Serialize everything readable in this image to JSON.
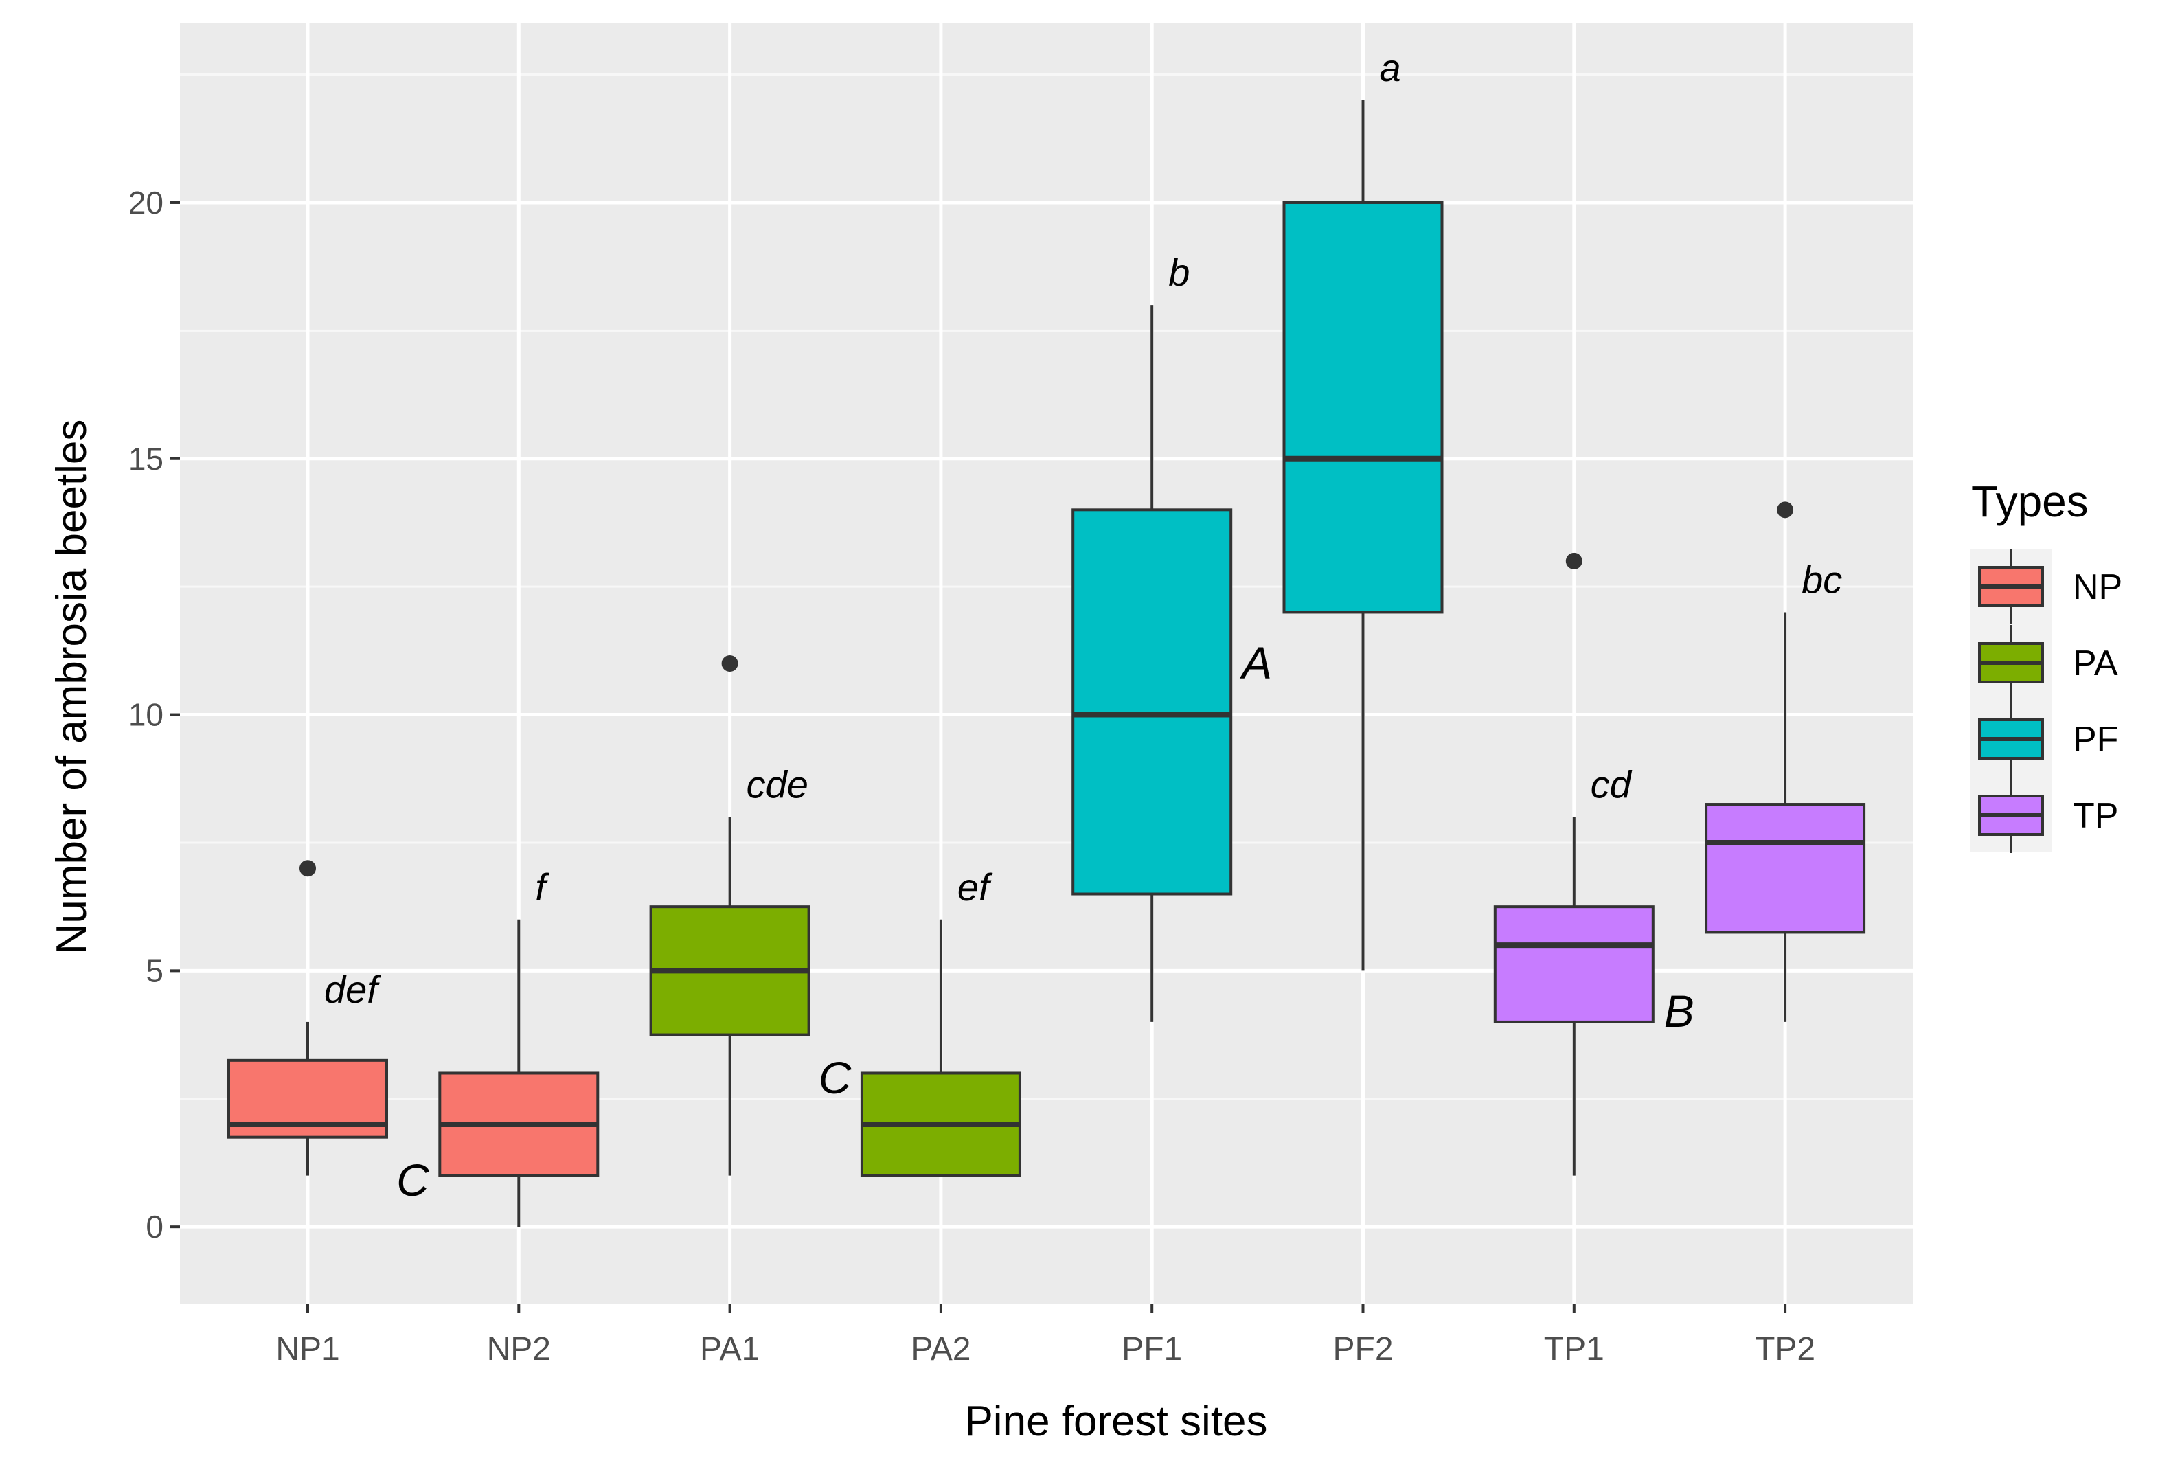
{
  "chart_data": {
    "type": "box",
    "xlabel": "Pine forest sites",
    "ylabel": "Number of ambrosia beetles",
    "ylim": [
      -1.5,
      23.5
    ],
    "yticks": [
      0,
      5,
      10,
      15,
      20
    ],
    "yminor": [
      2.5,
      7.5,
      12.5,
      17.5,
      22.5
    ],
    "categories": [
      "NP1",
      "NP2",
      "PA1",
      "PA2",
      "PF1",
      "PF2",
      "TP1",
      "TP2"
    ],
    "boxes": [
      {
        "site": "NP1",
        "type": "NP",
        "whisker_low": 1,
        "q1": 1.75,
        "median": 2,
        "q3": 3.25,
        "whisker_high": 4,
        "outliers": [
          7
        ],
        "letter": "def"
      },
      {
        "site": "NP2",
        "type": "NP",
        "whisker_low": 0,
        "q1": 1,
        "median": 2,
        "q3": 3,
        "whisker_high": 6,
        "outliers": [],
        "letter": "f"
      },
      {
        "site": "PA1",
        "type": "PA",
        "whisker_low": 1,
        "q1": 3.75,
        "median": 5,
        "q3": 6.25,
        "whisker_high": 8,
        "outliers": [
          11
        ],
        "letter": "cde"
      },
      {
        "site": "PA2",
        "type": "PA",
        "whisker_low": 1,
        "q1": 1,
        "median": 2,
        "q3": 3,
        "whisker_high": 6,
        "outliers": [],
        "letter": "ef"
      },
      {
        "site": "PF1",
        "type": "PF",
        "whisker_low": 4,
        "q1": 6.5,
        "median": 10,
        "q3": 14,
        "whisker_high": 18,
        "outliers": [],
        "letter": "b"
      },
      {
        "site": "PF2",
        "type": "PF",
        "whisker_low": 5,
        "q1": 12,
        "median": 15,
        "q3": 20,
        "whisker_high": 22,
        "outliers": [],
        "letter": "a"
      },
      {
        "site": "TP1",
        "type": "TP",
        "whisker_low": 1,
        "q1": 4,
        "median": 5.5,
        "q3": 6.25,
        "whisker_high": 8,
        "outliers": [
          13
        ],
        "letter": "cd"
      },
      {
        "site": "TP2",
        "type": "TP",
        "whisker_low": 4,
        "q1": 5.75,
        "median": 7.5,
        "q3": 8.25,
        "whisker_high": 12,
        "outliers": [
          14
        ],
        "letter": "bc"
      }
    ],
    "group_letters": [
      {
        "label": "C",
        "after_site": "NP1",
        "y": 0.9
      },
      {
        "label": "C",
        "after_site": "PA1",
        "y": 2.9
      },
      {
        "label": "A",
        "after_site": "PF1",
        "y": 11
      },
      {
        "label": "B",
        "after_site": "TP1",
        "y": 4.2
      }
    ],
    "legend": {
      "title": "Types",
      "position": "right",
      "entries": [
        {
          "label": "NP",
          "color": "#F8766D"
        },
        {
          "label": "PA",
          "color": "#7CAE00"
        },
        {
          "label": "PF",
          "color": "#00BFC4"
        },
        {
          "label": "TP",
          "color": "#C77CFF"
        }
      ]
    },
    "colors": {
      "panel": "#EBEBEB",
      "grid": "#FFFFFF",
      "line": "#333333"
    }
  }
}
